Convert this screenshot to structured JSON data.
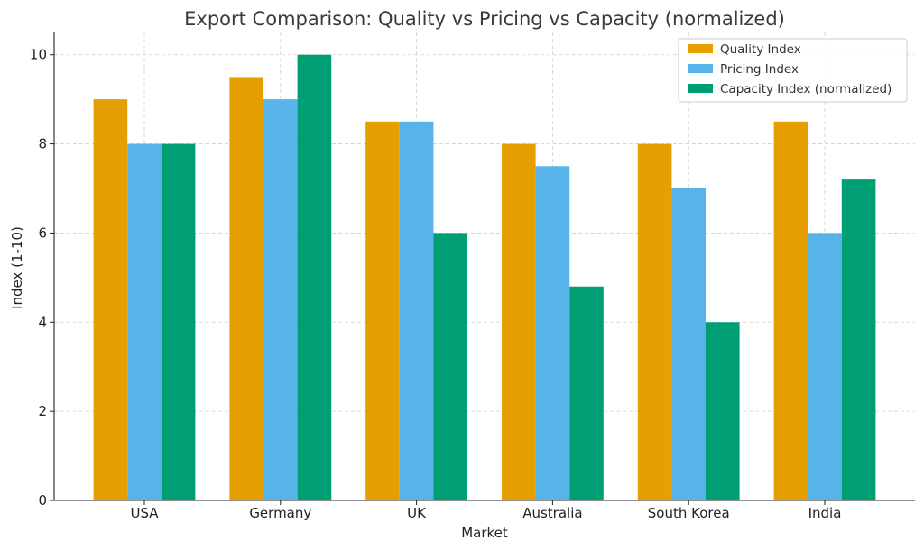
{
  "chart_data": {
    "type": "bar",
    "title": "Export Comparison: Quality vs Pricing vs Capacity (normalized)",
    "xlabel": "Market",
    "ylabel": "Index (1-10)",
    "categories": [
      "USA",
      "Germany",
      "UK",
      "Australia",
      "South Korea",
      "India"
    ],
    "series": [
      {
        "name": "Quality Index",
        "color": "#E69F00",
        "values": [
          9,
          9.5,
          8.5,
          8,
          8,
          8.5
        ]
      },
      {
        "name": "Pricing Index",
        "color": "#56B4E9",
        "values": [
          8,
          9,
          8.5,
          7.5,
          7,
          6
        ]
      },
      {
        "name": "Capacity Index (normalized)",
        "color": "#009E73",
        "values": [
          8,
          10,
          6,
          4.8,
          4,
          7.2
        ]
      }
    ],
    "ylim": [
      0,
      10.5
    ],
    "yticks": [
      0,
      2,
      4,
      6,
      8,
      10
    ],
    "grid": true,
    "legend_position": "top-right"
  }
}
